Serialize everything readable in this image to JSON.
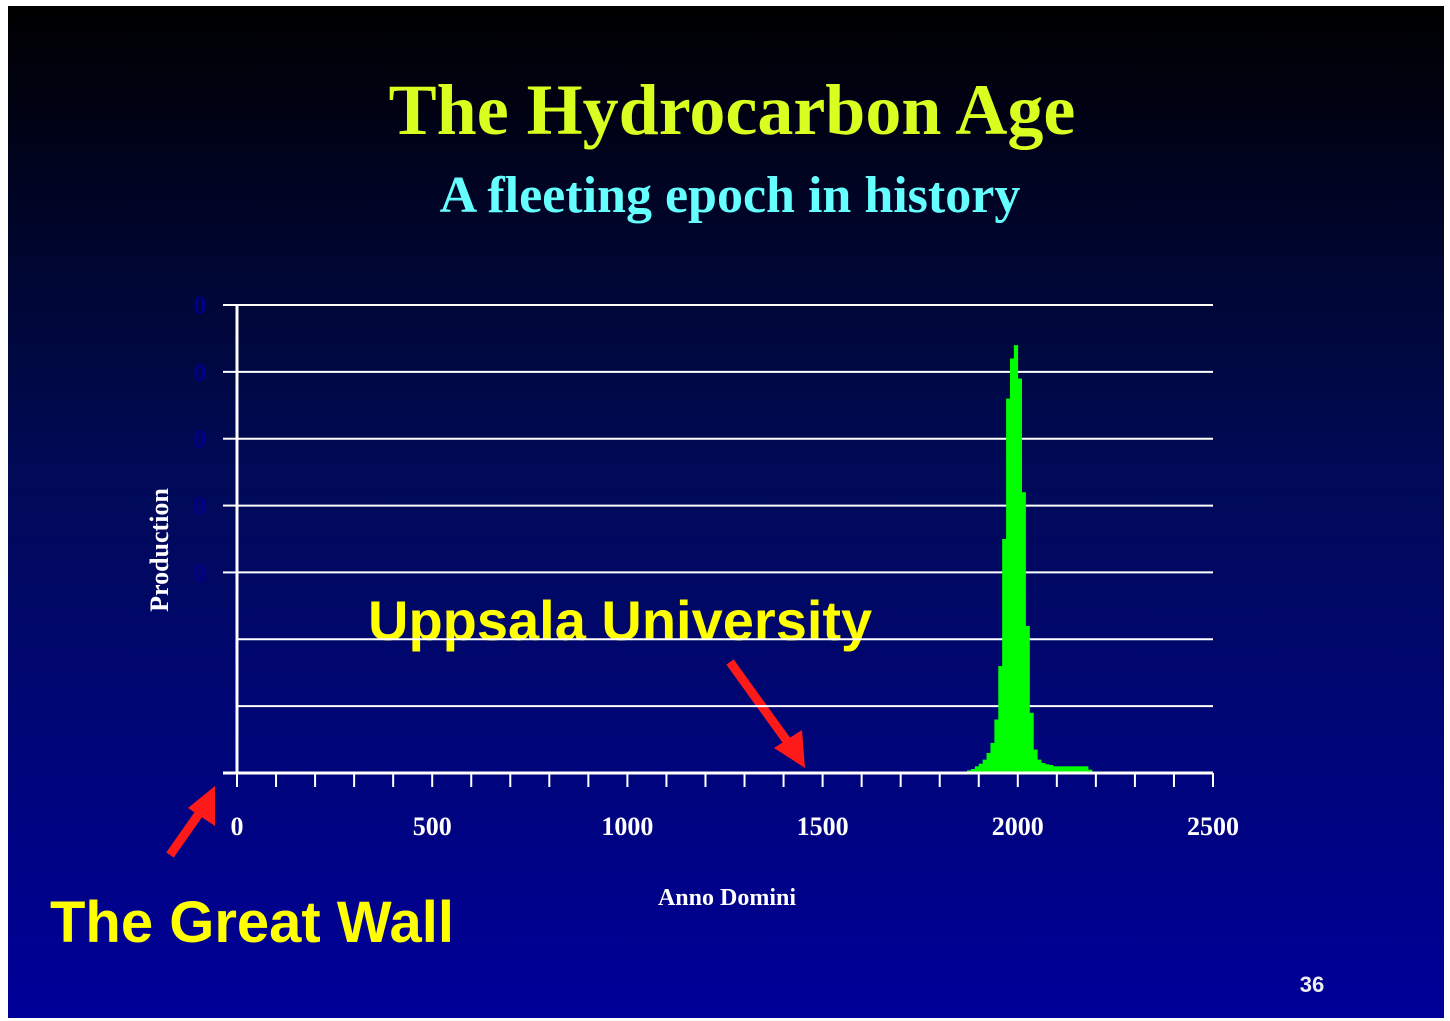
{
  "chart_data": {
    "type": "histogram",
    "title": "The Hydrocarbon Age",
    "subtitle": "A fleeting epoch in history",
    "xlabel": "Anno Domini",
    "ylabel": "Production",
    "color": "#00ff00",
    "bins": [
      1860,
      1870,
      1880,
      1890,
      1900,
      1910,
      1920,
      1930,
      1940,
      1950,
      1960,
      1970,
      1980,
      1990,
      2000,
      2010,
      2020,
      2030,
      2040,
      2050,
      2060,
      2070,
      2080,
      2090,
      2100,
      2110,
      2120,
      2130,
      2140,
      2150,
      2160,
      2170,
      2180,
      2190
    ],
    "values": [
      0.02,
      0.04,
      0.06,
      0.1,
      0.14,
      0.2,
      0.3,
      0.45,
      0.8,
      1.6,
      3.5,
      5.6,
      6.2,
      6.4,
      5.9,
      4.2,
      2.2,
      0.9,
      0.35,
      0.2,
      0.15,
      0.13,
      0.12,
      0.1,
      0.1,
      0.1,
      0.1,
      0.1,
      0.1,
      0.1,
      0.1,
      0.1,
      0.05
    ],
    "xlim": [
      0,
      2500
    ],
    "xticks": [
      0,
      500,
      1000,
      1500,
      2000,
      2500
    ],
    "xminorticks": [
      100,
      200,
      300,
      400,
      600,
      700,
      800,
      900,
      1100,
      1200,
      1300,
      1400,
      1600,
      1700,
      1800,
      1900,
      2100,
      2200,
      2300,
      2400
    ],
    "ylim": [
      0,
      7
    ],
    "yticks": [
      {
        "value": 3,
        "label": "0"
      },
      {
        "value": 4,
        "label": "0"
      },
      {
        "value": 5,
        "label": "0"
      },
      {
        "value": 6,
        "label": "0"
      },
      {
        "value": 7,
        "label": "0"
      }
    ],
    "ygrid": [
      1,
      2,
      3,
      4,
      5,
      6,
      7
    ],
    "annotations": [
      "Uppsala University",
      "The Great Wall"
    ],
    "page_number": "36"
  }
}
